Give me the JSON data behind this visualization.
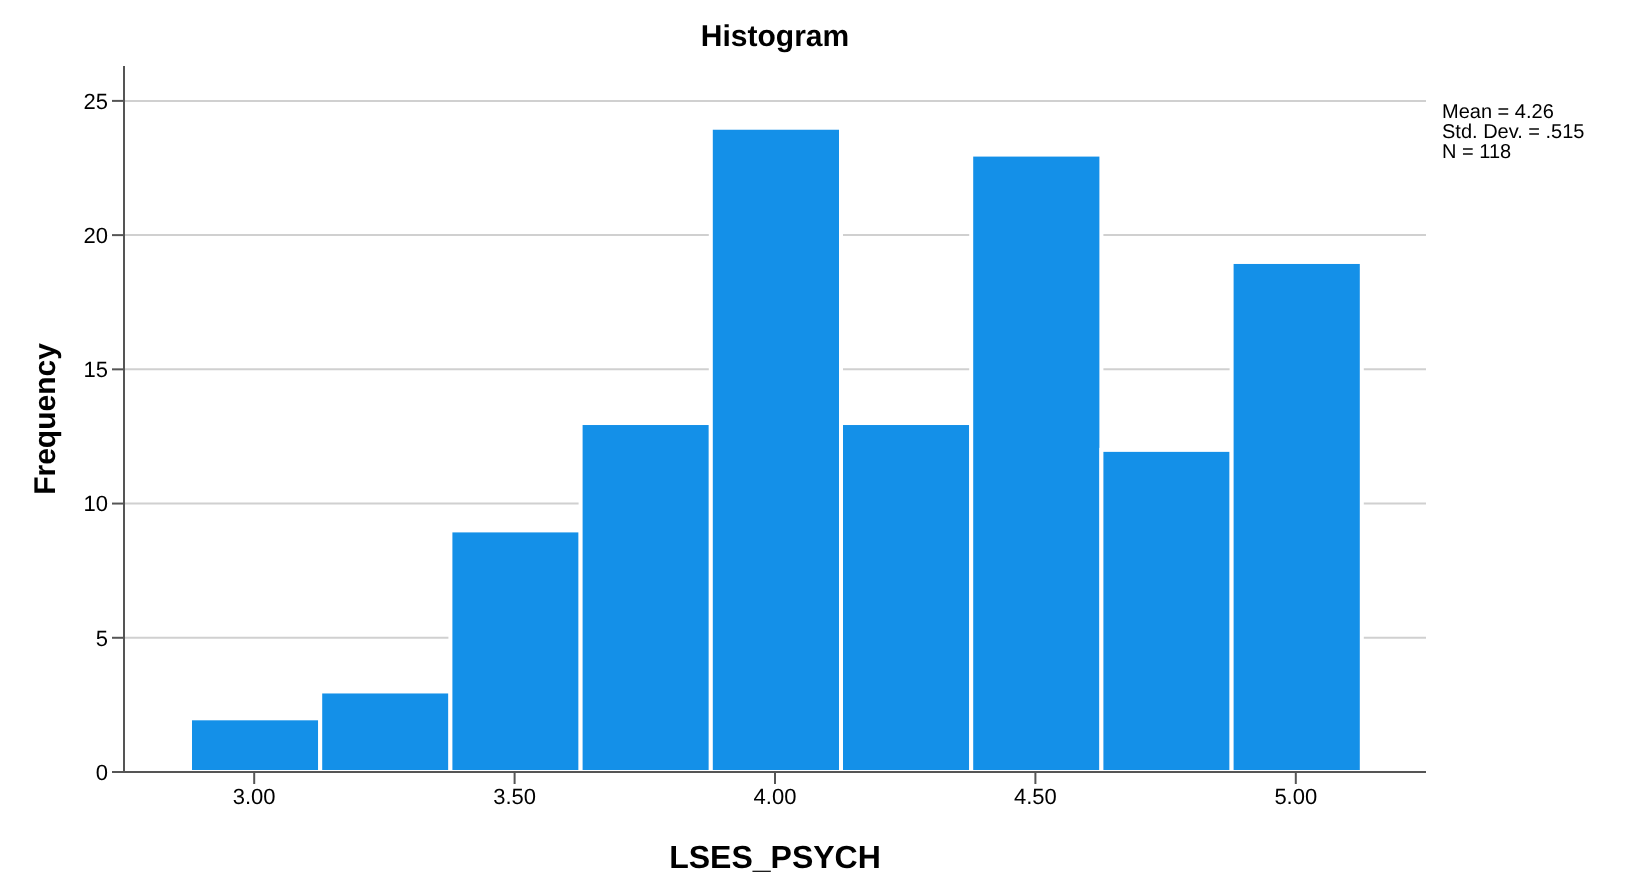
{
  "chart_data": {
    "type": "histogram",
    "title": "Histogram",
    "xlabel": "LSES_PSYCH",
    "ylabel": "Frequency",
    "bins": [
      2.875,
      3.125,
      3.375,
      3.625,
      3.875,
      4.125,
      4.375,
      4.625,
      4.875,
      5.125
    ],
    "values": [
      2,
      3,
      9,
      13,
      24,
      13,
      23,
      12,
      19
    ],
    "color": "#1490e8",
    "xlim": [
      2.75,
      5.25
    ],
    "xticks": [
      {
        "value": 3,
        "label": "3.00"
      },
      {
        "value": 3.5,
        "label": "3.50"
      },
      {
        "value": 4,
        "label": "4.00"
      },
      {
        "value": 4.5,
        "label": "4.50"
      },
      {
        "value": 5,
        "label": "5.00"
      }
    ],
    "ylim": [
      0,
      26.3
    ],
    "yticks": [
      0,
      5,
      10,
      15,
      20,
      25
    ],
    "grid": "y",
    "annotations": [
      "Mean = 4.26",
      "Std. Dev. = .515",
      "N = 118"
    ]
  }
}
